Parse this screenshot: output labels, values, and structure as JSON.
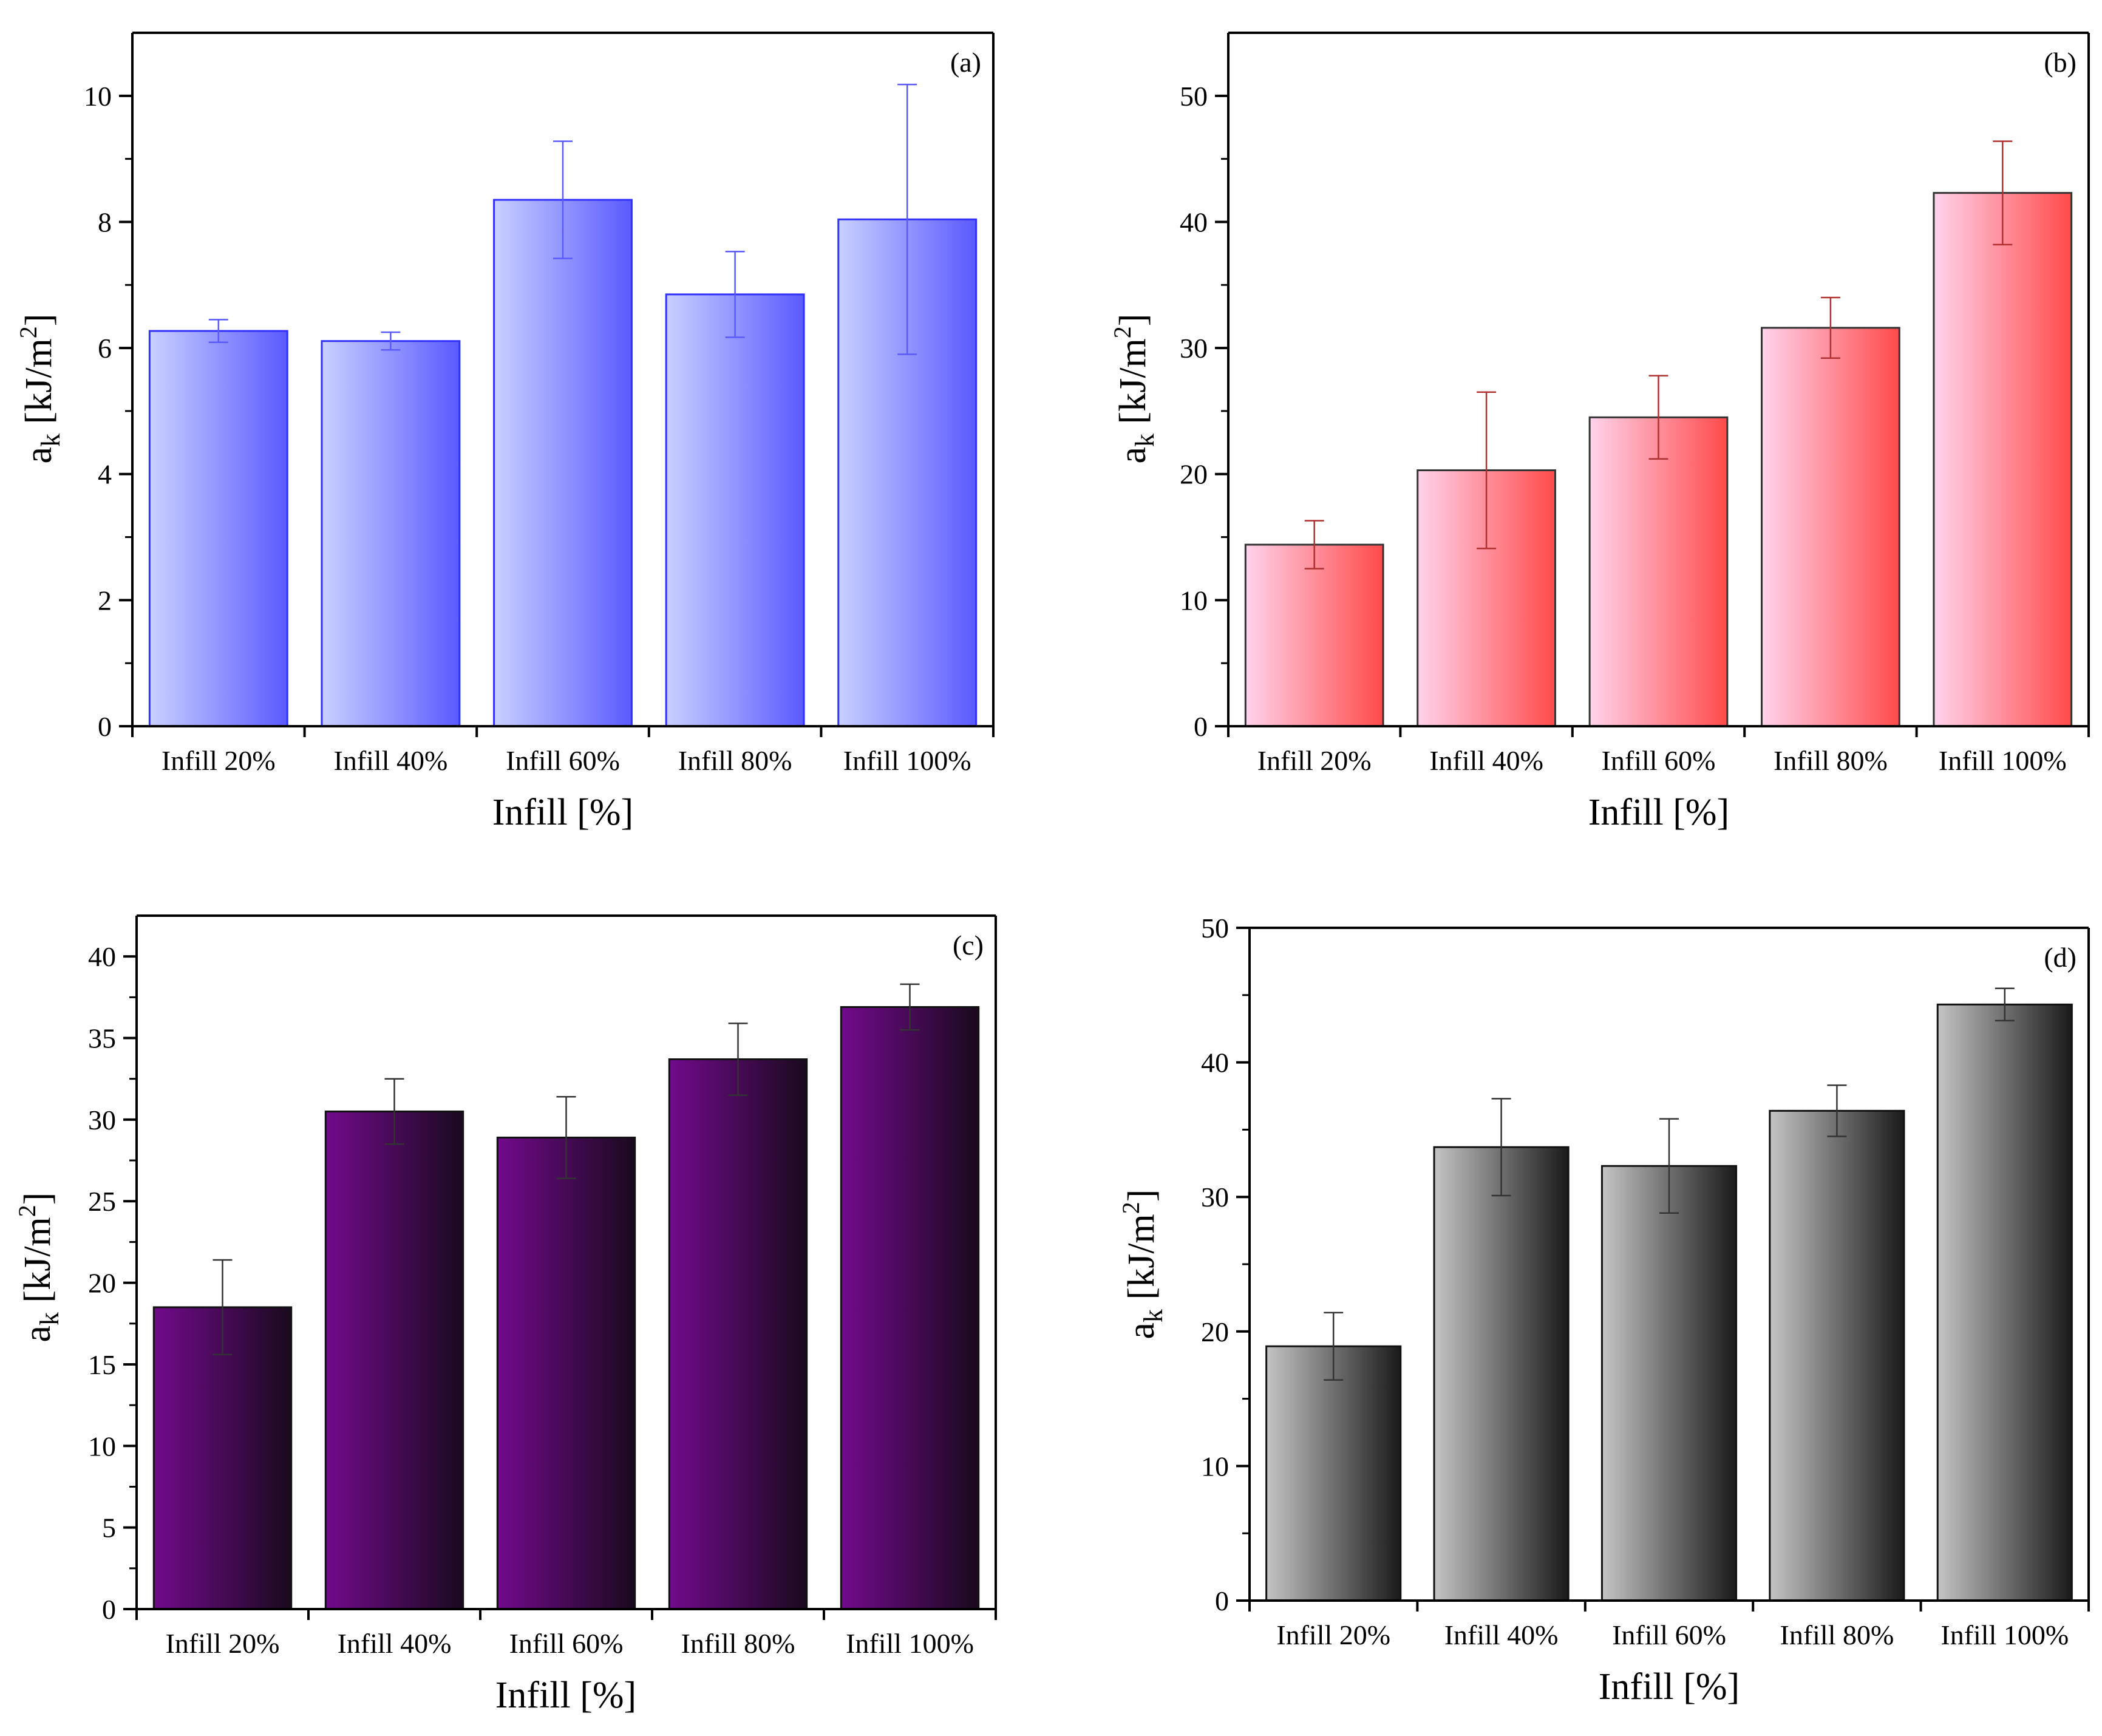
{
  "colors": {
    "axis": "#000000"
  },
  "chart_data": [
    {
      "panel": "(a)",
      "type": "bar",
      "categories": [
        "Infill 20%",
        "Infill 40%",
        "Infill 60%",
        "Infill 80%",
        "Infill 100%"
      ],
      "values": [
        6.27,
        6.11,
        8.35,
        6.85,
        8.04
      ],
      "errors": [
        0.18,
        0.14,
        0.93,
        0.68,
        2.14
      ],
      "xlabel": "Infill [%]",
      "ylabel_main": "a",
      "ylabel_sub": "k",
      "ylabel_unit": " [kJ/m",
      "ylabel_sup": "2",
      "ylabel_end": "]",
      "ylim": [
        0,
        11
      ],
      "yticks": [
        0,
        2,
        4,
        6,
        8,
        10
      ],
      "minor_step": 1,
      "grid": false,
      "colors": {
        "bar_light": "#c9d0ff",
        "bar_dark": "#5a5aff",
        "edge": "#3030ff",
        "errorbar": "#5a5aff"
      }
    },
    {
      "panel": "(b)",
      "type": "bar",
      "categories": [
        "Infill 20%",
        "Infill 40%",
        "Infill 60%",
        "Infill 80%",
        "Infill 100%"
      ],
      "values": [
        14.4,
        20.3,
        24.5,
        31.6,
        42.3
      ],
      "errors": [
        1.9,
        6.2,
        3.3,
        2.4,
        4.1
      ],
      "xlabel": "Infill [%]",
      "ylabel_main": "a",
      "ylabel_sub": "k",
      "ylabel_unit": " [kJ/m",
      "ylabel_sup": "2",
      "ylabel_end": "]",
      "ylim": [
        0,
        55
      ],
      "yticks": [
        0,
        10,
        20,
        30,
        40,
        50
      ],
      "minor_step": 5,
      "grid": false,
      "colors": {
        "bar_light": "#ffd3ec",
        "bar_dark": "#ff4a4a",
        "edge": "#333333",
        "errorbar": "#b03030"
      }
    },
    {
      "panel": "(c)",
      "type": "bar",
      "categories": [
        "Infill 20%",
        "Infill 40%",
        "Infill 60%",
        "Infill 80%",
        "Infill 100%"
      ],
      "values": [
        18.5,
        30.5,
        28.9,
        33.7,
        36.9
      ],
      "errors": [
        2.9,
        2.0,
        2.5,
        2.2,
        1.4
      ],
      "xlabel": "Infill [%]",
      "ylabel_main": "a",
      "ylabel_sub": "k",
      "ylabel_unit": " [kJ/m",
      "ylabel_sup": "2",
      "ylabel_end": "]",
      "ylim": [
        0,
        42.5
      ],
      "yticks": [
        0,
        5,
        10,
        15,
        20,
        25,
        30,
        35,
        40
      ],
      "minor_step": 2.5,
      "grid": false,
      "colors": {
        "bar_light": "#720a8c",
        "bar_dark": "#1a0a1e",
        "edge": "#111111",
        "errorbar": "#333333"
      }
    },
    {
      "panel": "(d)",
      "type": "bar",
      "categories": [
        "Infill 20%",
        "Infill 40%",
        "Infill 60%",
        "Infill 80%",
        "Infill 100%"
      ],
      "values": [
        18.9,
        33.7,
        32.3,
        36.4,
        44.3
      ],
      "errors": [
        2.5,
        3.6,
        3.5,
        1.9,
        1.2
      ],
      "xlabel": "Infill [%]",
      "ylabel_main": "a",
      "ylabel_sub": "k",
      "ylabel_unit": " [kJ/m",
      "ylabel_sup": "2",
      "ylabel_end": "]",
      "ylim": [
        0,
        50
      ],
      "yticks": [
        0,
        10,
        20,
        30,
        40,
        50
      ],
      "minor_step": 5,
      "grid": false,
      "colors": {
        "bar_light": "#c4c4c4",
        "bar_dark": "#1a1a1a",
        "edge": "#111111",
        "errorbar": "#333333"
      }
    }
  ]
}
